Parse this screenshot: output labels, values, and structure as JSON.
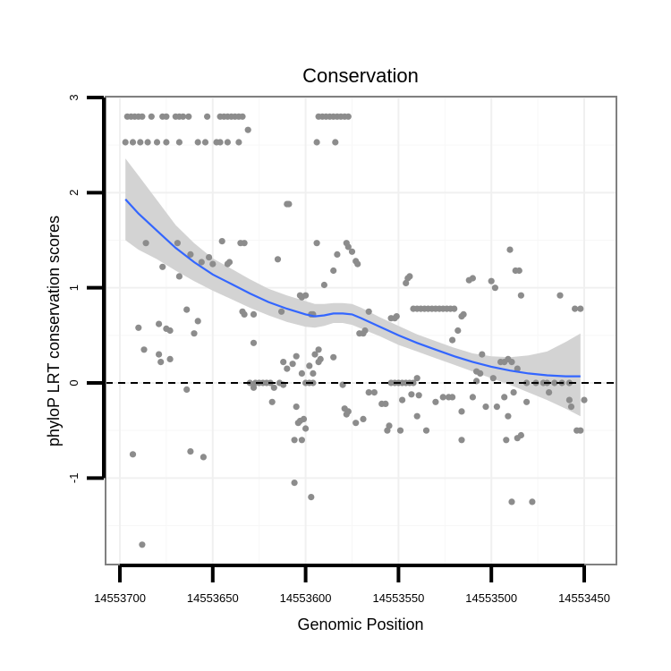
{
  "chart_data": {
    "type": "scatter",
    "title": "Conservation",
    "xlabel": "Genomic Position",
    "ylabel": "phyloP LRT conservation scores",
    "xlim": [
      14553700,
      14553450
    ],
    "x_reversed": true,
    "ylim": [
      -1.9,
      3.0
    ],
    "x_ticks": [
      14553700,
      14553650,
      14553600,
      14553550,
      14553500,
      14553450
    ],
    "x_tick_labels": [
      "14553700",
      "14553650",
      "14553600",
      "14553550",
      "14553500",
      "14553450"
    ],
    "y_ticks": [
      -1,
      0,
      1,
      2,
      3
    ],
    "y_tick_labels": [
      "-1",
      "0",
      "1",
      "2",
      "3"
    ],
    "grid": true,
    "reference_line": {
      "y": 0,
      "style": "dashed",
      "color": "#000000"
    },
    "colors": {
      "points": "#8c8c8c",
      "smooth": "#3366ff",
      "band": "#d3d3d3"
    },
    "series": [
      {
        "type": "scatter",
        "points": [
          [
            14553696,
            2.8
          ],
          [
            14553694,
            2.8
          ],
          [
            14553692,
            2.8
          ],
          [
            14553690,
            2.8
          ],
          [
            14553688,
            2.8
          ],
          [
            14553683,
            2.8
          ],
          [
            14553677,
            2.8
          ],
          [
            14553675,
            2.8
          ],
          [
            14553670,
            2.8
          ],
          [
            14553668,
            2.8
          ],
          [
            14553666,
            2.8
          ],
          [
            14553663,
            2.8
          ],
          [
            14553653,
            2.8
          ],
          [
            14553646,
            2.8
          ],
          [
            14553644,
            2.8
          ],
          [
            14553642,
            2.8
          ],
          [
            14553640,
            2.8
          ],
          [
            14553638,
            2.8
          ],
          [
            14553636,
            2.8
          ],
          [
            14553634,
            2.8
          ],
          [
            14553697,
            2.53
          ],
          [
            14553693,
            2.53
          ],
          [
            14553689,
            2.53
          ],
          [
            14553685,
            2.53
          ],
          [
            14553680,
            2.53
          ],
          [
            14553675,
            2.53
          ],
          [
            14553668,
            2.53
          ],
          [
            14553658,
            2.53
          ],
          [
            14553654,
            2.53
          ],
          [
            14553648,
            2.53
          ],
          [
            14553646,
            2.53
          ],
          [
            14553642,
            2.53
          ],
          [
            14553636,
            2.53
          ],
          [
            14553631,
            2.66
          ],
          [
            14553593,
            2.8
          ],
          [
            14553591,
            2.8
          ],
          [
            14553589,
            2.8
          ],
          [
            14553587,
            2.8
          ],
          [
            14553585,
            2.8
          ],
          [
            14553583,
            2.8
          ],
          [
            14553581,
            2.8
          ],
          [
            14553579,
            2.8
          ],
          [
            14553577,
            2.8
          ],
          [
            14553594,
            2.53
          ],
          [
            14553584,
            2.53
          ],
          [
            14553610,
            1.88
          ],
          [
            14553609,
            1.88
          ],
          [
            14553686,
            1.47
          ],
          [
            14553669,
            1.47
          ],
          [
            14553645,
            1.49
          ],
          [
            14553635,
            1.47
          ],
          [
            14553633,
            1.47
          ],
          [
            14553594,
            1.47
          ],
          [
            14553578,
            1.47
          ],
          [
            14553577,
            1.43
          ],
          [
            14553575,
            1.38
          ],
          [
            14553573,
            1.28
          ],
          [
            14553572,
            1.25
          ],
          [
            14553583,
            1.35
          ],
          [
            14553585,
            1.18
          ],
          [
            14553603,
            0.92
          ],
          [
            14553615,
            1.3
          ],
          [
            14553600,
            0.92
          ],
          [
            14553602,
            0.9
          ],
          [
            14553677,
            1.22
          ],
          [
            14553668,
            1.12
          ],
          [
            14553662,
            1.35
          ],
          [
            14553656,
            1.27
          ],
          [
            14553652,
            1.32
          ],
          [
            14553650,
            1.25
          ],
          [
            14553642,
            1.25
          ],
          [
            14553641,
            1.27
          ],
          [
            14553590,
            1.03
          ],
          [
            14553664,
            0.77
          ],
          [
            14553658,
            0.65
          ],
          [
            14553634,
            0.75
          ],
          [
            14553633,
            0.72
          ],
          [
            14553613,
            0.75
          ],
          [
            14553596,
            0.72
          ],
          [
            14553597,
            0.72
          ],
          [
            14553571,
            0.52
          ],
          [
            14553569,
            0.52
          ],
          [
            14553568,
            0.55
          ],
          [
            14553566,
            0.75
          ],
          [
            14553552,
            0.68
          ],
          [
            14553554,
            0.68
          ],
          [
            14553545,
            1.1
          ],
          [
            14553546,
            1.05
          ],
          [
            14553544,
            1.12
          ],
          [
            14553551,
            0.7
          ],
          [
            14553690,
            0.58
          ],
          [
            14553679,
            0.62
          ],
          [
            14553673,
            0.55
          ],
          [
            14553675,
            0.57
          ],
          [
            14553660,
            0.52
          ],
          [
            14553542,
            0.78
          ],
          [
            14553540,
            0.78
          ],
          [
            14553538,
            0.78
          ],
          [
            14553536,
            0.78
          ],
          [
            14553534,
            0.78
          ],
          [
            14553532,
            0.78
          ],
          [
            14553530,
            0.78
          ],
          [
            14553528,
            0.78
          ],
          [
            14553526,
            0.78
          ],
          [
            14553524,
            0.78
          ],
          [
            14553522,
            0.78
          ],
          [
            14553520,
            0.78
          ],
          [
            14553516,
            0.7
          ],
          [
            14553515,
            0.72
          ],
          [
            14553518,
            0.55
          ],
          [
            14553521,
            0.45
          ],
          [
            14553512,
            1.08
          ],
          [
            14553510,
            1.1
          ],
          [
            14553500,
            1.07
          ],
          [
            14553498,
            1.0
          ],
          [
            14553490,
            1.4
          ],
          [
            14553487,
            1.18
          ],
          [
            14553485,
            1.18
          ],
          [
            14553484,
            0.92
          ],
          [
            14553463,
            0.92
          ],
          [
            14553455,
            0.78
          ],
          [
            14553452,
            0.78
          ],
          [
            14553687,
            0.35
          ],
          [
            14553679,
            0.3
          ],
          [
            14553678,
            0.22
          ],
          [
            14553673,
            0.25
          ],
          [
            14553628,
            0.42
          ],
          [
            14553628,
            0.72
          ],
          [
            14553595,
            0.3
          ],
          [
            14553593,
            0.35
          ],
          [
            14553592,
            0.25
          ],
          [
            14553593,
            0.22
          ],
          [
            14553585,
            0.27
          ],
          [
            14553605,
            0.28
          ],
          [
            14553607,
            0.2
          ],
          [
            14553610,
            0.15
          ],
          [
            14553602,
            0.1
          ],
          [
            14553612,
            0.22
          ],
          [
            14553596,
            0.1
          ],
          [
            14553598,
            0.18
          ],
          [
            14553508,
            0.12
          ],
          [
            14553506,
            0.1
          ],
          [
            14553505,
            0.3
          ],
          [
            14553495,
            0.22
          ],
          [
            14553493,
            0.22
          ],
          [
            14553491,
            0.25
          ],
          [
            14553489,
            0.22
          ],
          [
            14553486,
            0.15
          ],
          [
            14553481,
            0.0
          ],
          [
            14553476,
            0.0
          ],
          [
            14553472,
            0.0
          ],
          [
            14553470,
            0.0
          ],
          [
            14553466,
            0.0
          ],
          [
            14553462,
            0.0
          ],
          [
            14553458,
            0.0
          ],
          [
            14553630,
            0.0
          ],
          [
            14553627,
            0.0
          ],
          [
            14553625,
            0.0
          ],
          [
            14553623,
            0.0
          ],
          [
            14553621,
            0.0
          ],
          [
            14553619,
            0.0
          ],
          [
            14553617,
            -0.05
          ],
          [
            14553614,
            0.0
          ],
          [
            14553612,
            -0.02
          ],
          [
            14553600,
            0.0
          ],
          [
            14553598,
            0.0
          ],
          [
            14553596,
            0.0
          ],
          [
            14553554,
            0.0
          ],
          [
            14553552,
            0.0
          ],
          [
            14553550,
            0.0
          ],
          [
            14553548,
            0.0
          ],
          [
            14553546,
            0.0
          ],
          [
            14553544,
            0.0
          ],
          [
            14553542,
            0.0
          ],
          [
            14553508,
            0.02
          ],
          [
            14553499,
            0.05
          ],
          [
            14553540,
            0.05
          ],
          [
            14553664,
            -0.07
          ],
          [
            14553628,
            -0.05
          ],
          [
            14553580,
            -0.02
          ],
          [
            14553618,
            -0.2
          ],
          [
            14553605,
            -0.25
          ],
          [
            14553603,
            -0.4
          ],
          [
            14553600,
            -0.48
          ],
          [
            14553602,
            -0.6
          ],
          [
            14553606,
            -0.6
          ],
          [
            14553604,
            -0.42
          ],
          [
            14553601,
            -0.38
          ],
          [
            14553579,
            -0.27
          ],
          [
            14553577,
            -0.3
          ],
          [
            14553578,
            -0.33
          ],
          [
            14553573,
            -0.42
          ],
          [
            14553569,
            -0.38
          ],
          [
            14553566,
            -0.1
          ],
          [
            14553563,
            -0.1
          ],
          [
            14553559,
            -0.22
          ],
          [
            14553557,
            -0.22
          ],
          [
            14553556,
            -0.5
          ],
          [
            14553555,
            -0.45
          ],
          [
            14553549,
            -0.5
          ],
          [
            14553548,
            -0.18
          ],
          [
            14553543,
            -0.12
          ],
          [
            14553540,
            -0.35
          ],
          [
            14553539,
            -0.13
          ],
          [
            14553535,
            -0.5
          ],
          [
            14553530,
            -0.2
          ],
          [
            14553526,
            -0.15
          ],
          [
            14553523,
            -0.15
          ],
          [
            14553521,
            -0.15
          ],
          [
            14553516,
            -0.3
          ],
          [
            14553516,
            -0.6
          ],
          [
            14553510,
            -0.15
          ],
          [
            14553503,
            -0.25
          ],
          [
            14553497,
            -0.25
          ],
          [
            14553493,
            -0.15
          ],
          [
            14553491,
            -0.35
          ],
          [
            14553488,
            -0.1
          ],
          [
            14553486,
            -0.58
          ],
          [
            14553484,
            -0.55
          ],
          [
            14553481,
            -0.2
          ],
          [
            14553469,
            -0.1
          ],
          [
            14553458,
            -0.18
          ],
          [
            14553457,
            -0.25
          ],
          [
            14553454,
            -0.5
          ],
          [
            14553452,
            -0.5
          ],
          [
            14553450,
            -0.18
          ],
          [
            14553478,
            -1.25
          ],
          [
            14553489,
            -1.25
          ],
          [
            14553492,
            -0.6
          ],
          [
            14553693,
            -0.75
          ],
          [
            14553662,
            -0.72
          ],
          [
            14553655,
            -0.78
          ],
          [
            14553606,
            -1.05
          ],
          [
            14553597,
            -1.2
          ],
          [
            14553688,
            -1.7
          ]
        ]
      },
      {
        "type": "line",
        "name": "loess",
        "x": [
          14553697,
          14553690,
          14553680,
          14553670,
          14553660,
          14553650,
          14553640,
          14553630,
          14553620,
          14553610,
          14553600,
          14553595,
          14553590,
          14553585,
          14553580,
          14553575,
          14553570,
          14553560,
          14553550,
          14553540,
          14553530,
          14553520,
          14553510,
          14553500,
          14553490,
          14553480,
          14553470,
          14553460,
          14553452
        ],
        "y": [
          1.93,
          1.78,
          1.6,
          1.42,
          1.27,
          1.14,
          1.04,
          0.94,
          0.85,
          0.78,
          0.72,
          0.7,
          0.71,
          0.73,
          0.73,
          0.72,
          0.68,
          0.59,
          0.5,
          0.42,
          0.35,
          0.28,
          0.22,
          0.17,
          0.13,
          0.1,
          0.08,
          0.07,
          0.07
        ],
        "lower": [
          1.5,
          1.4,
          1.3,
          1.18,
          1.07,
          0.97,
          0.88,
          0.79,
          0.71,
          0.64,
          0.59,
          0.58,
          0.6,
          0.63,
          0.63,
          0.61,
          0.57,
          0.49,
          0.4,
          0.33,
          0.26,
          0.19,
          0.12,
          0.05,
          -0.02,
          -0.1,
          -0.18,
          -0.27,
          -0.35
        ],
        "upper": [
          2.36,
          2.18,
          1.92,
          1.66,
          1.47,
          1.31,
          1.2,
          1.09,
          0.99,
          0.92,
          0.86,
          0.83,
          0.83,
          0.84,
          0.84,
          0.83,
          0.79,
          0.69,
          0.6,
          0.51,
          0.44,
          0.37,
          0.31,
          0.28,
          0.27,
          0.29,
          0.33,
          0.43,
          0.52
        ]
      }
    ]
  }
}
